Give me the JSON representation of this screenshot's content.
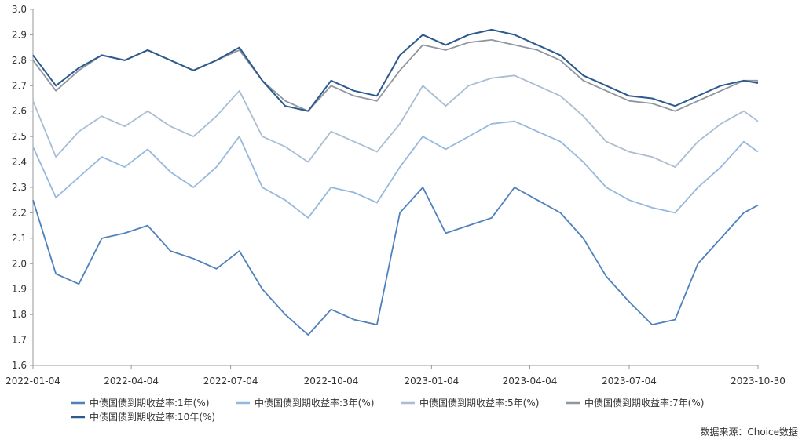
{
  "chart_data": {
    "type": "line",
    "title": "",
    "xlabel": "",
    "ylabel": "",
    "ylim": [
      1.6,
      3.0
    ],
    "yticks": [
      "1.6",
      "1.7",
      "1.8",
      "1.9",
      "2.0",
      "2.1",
      "2.2",
      "2.3",
      "2.4",
      "2.5",
      "2.6",
      "2.7",
      "2.8",
      "2.9",
      "3.0"
    ],
    "xticks": [
      "2022-01-04",
      "2022-04-04",
      "2022-07-04",
      "2022-10-04",
      "2023-01-04",
      "2023-04-04",
      "2023-07-04",
      "2023-10-30"
    ],
    "x": [
      "2022-01-04",
      "2022-01-25",
      "2022-02-15",
      "2022-03-08",
      "2022-03-29",
      "2022-04-19",
      "2022-05-10",
      "2022-05-31",
      "2022-06-21",
      "2022-07-12",
      "2022-08-02",
      "2022-08-23",
      "2022-09-13",
      "2022-10-04",
      "2022-10-25",
      "2022-11-15",
      "2022-12-06",
      "2022-12-27",
      "2023-01-17",
      "2023-02-07",
      "2023-02-28",
      "2023-03-21",
      "2023-04-11",
      "2023-05-02",
      "2023-05-23",
      "2023-06-13",
      "2023-07-04",
      "2023-07-25",
      "2023-08-15",
      "2023-09-05",
      "2023-09-26",
      "2023-10-17",
      "2023-10-30"
    ],
    "series": [
      {
        "name": "中债国债到期收益率:1年(%)",
        "color": "#4f81bd",
        "values": [
          2.25,
          1.96,
          1.92,
          2.1,
          2.12,
          2.15,
          2.05,
          2.02,
          1.98,
          2.05,
          1.9,
          1.8,
          1.72,
          1.82,
          1.78,
          1.76,
          2.2,
          2.3,
          2.12,
          2.15,
          2.18,
          2.3,
          2.25,
          2.2,
          2.1,
          1.95,
          1.85,
          1.76,
          1.78,
          2.0,
          2.1,
          2.2,
          2.23
        ]
      },
      {
        "name": "中债国债到期收益率:3年(%)",
        "color": "#95b9de",
        "values": [
          2.46,
          2.26,
          2.34,
          2.42,
          2.38,
          2.45,
          2.36,
          2.3,
          2.38,
          2.5,
          2.3,
          2.25,
          2.18,
          2.3,
          2.28,
          2.24,
          2.38,
          2.5,
          2.45,
          2.5,
          2.55,
          2.56,
          2.52,
          2.48,
          2.4,
          2.3,
          2.25,
          2.22,
          2.2,
          2.3,
          2.38,
          2.48,
          2.44
        ]
      },
      {
        "name": "中债国债到期收益率:5年(%)",
        "color": "#a9bdd3",
        "values": [
          2.64,
          2.42,
          2.52,
          2.58,
          2.54,
          2.6,
          2.54,
          2.5,
          2.58,
          2.68,
          2.5,
          2.46,
          2.4,
          2.52,
          2.48,
          2.44,
          2.55,
          2.7,
          2.62,
          2.7,
          2.73,
          2.74,
          2.7,
          2.66,
          2.58,
          2.48,
          2.44,
          2.42,
          2.38,
          2.48,
          2.55,
          2.6,
          2.56
        ]
      },
      {
        "name": "中债国债到期收益率:7年(%)",
        "color": "#8f96a0",
        "values": [
          2.8,
          2.68,
          2.76,
          2.82,
          2.8,
          2.84,
          2.8,
          2.76,
          2.8,
          2.84,
          2.72,
          2.64,
          2.6,
          2.7,
          2.66,
          2.64,
          2.76,
          2.86,
          2.84,
          2.87,
          2.88,
          2.86,
          2.84,
          2.8,
          2.72,
          2.68,
          2.64,
          2.63,
          2.6,
          2.64,
          2.68,
          2.72,
          2.72
        ]
      },
      {
        "name": "中债国债到期收益率:10年(%)",
        "color": "#2c5a8c",
        "values": [
          2.82,
          2.7,
          2.77,
          2.82,
          2.8,
          2.84,
          2.8,
          2.76,
          2.8,
          2.85,
          2.72,
          2.62,
          2.6,
          2.72,
          2.68,
          2.66,
          2.82,
          2.9,
          2.86,
          2.9,
          2.92,
          2.9,
          2.86,
          2.82,
          2.74,
          2.7,
          2.66,
          2.65,
          2.62,
          2.66,
          2.7,
          2.72,
          2.71
        ]
      }
    ],
    "grid": false,
    "legend_placement": "bottom"
  },
  "source": "数据来源：Choice数据"
}
